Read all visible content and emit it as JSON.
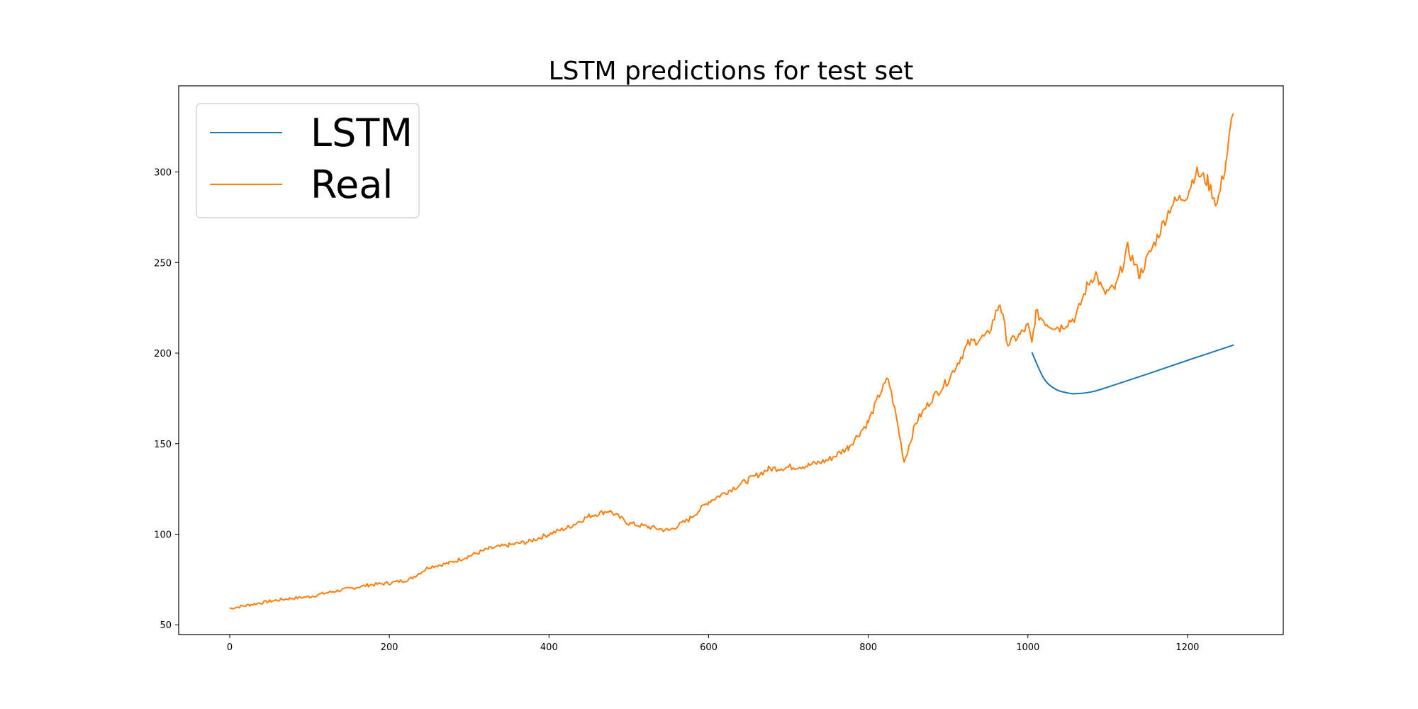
{
  "chart_data": {
    "type": "line",
    "title": "LSTM predictions for test set",
    "xlabel": "",
    "ylabel": "",
    "xlim": [
      -64,
      1320
    ],
    "ylim": [
      44.6,
      347.6
    ],
    "x_ticks": [
      0,
      200,
      400,
      600,
      800,
      1000,
      1200
    ],
    "y_ticks": [
      50,
      100,
      150,
      200,
      250,
      300
    ],
    "grid": false,
    "legend_position": "top-left",
    "series": [
      {
        "name": "LSTM",
        "color": "#1f77b4",
        "points": [
          [
            1005,
            200.5
          ],
          [
            1020,
            186
          ],
          [
            1035,
            180
          ],
          [
            1050,
            178
          ],
          [
            1060,
            177.6
          ],
          [
            1080,
            178.6
          ],
          [
            1100,
            181.2
          ],
          [
            1150,
            188.5
          ],
          [
            1200,
            196
          ],
          [
            1258,
            204.5
          ]
        ]
      },
      {
        "name": "Real",
        "color": "#ff7f0e",
        "anchors": [
          [
            0,
            59
          ],
          [
            25,
            61
          ],
          [
            50,
            63
          ],
          [
            75,
            64.5
          ],
          [
            100,
            65.5
          ],
          [
            125,
            68
          ],
          [
            150,
            70
          ],
          [
            175,
            72
          ],
          [
            200,
            73
          ],
          [
            225,
            75
          ],
          [
            250,
            82
          ],
          [
            275,
            84
          ],
          [
            300,
            88
          ],
          [
            325,
            92
          ],
          [
            350,
            94
          ],
          [
            375,
            96
          ],
          [
            400,
            100
          ],
          [
            425,
            104
          ],
          [
            450,
            110
          ],
          [
            475,
            113
          ],
          [
            500,
            106
          ],
          [
            525,
            104
          ],
          [
            550,
            102
          ],
          [
            575,
            108
          ],
          [
            600,
            118
          ],
          [
            625,
            124
          ],
          [
            650,
            130
          ],
          [
            675,
            136
          ],
          [
            700,
            137
          ],
          [
            725,
            138
          ],
          [
            750,
            141
          ],
          [
            775,
            148
          ],
          [
            800,
            162
          ],
          [
            815,
            178
          ],
          [
            825,
            186
          ],
          [
            835,
            165
          ],
          [
            845,
            140
          ],
          [
            860,
            162
          ],
          [
            880,
            175
          ],
          [
            900,
            185
          ],
          [
            925,
            205
          ],
          [
            950,
            210
          ],
          [
            965,
            228
          ],
          [
            975,
            205
          ],
          [
            990,
            210
          ],
          [
            1000,
            215
          ],
          [
            1005,
            205
          ],
          [
            1010,
            222
          ],
          [
            1025,
            216
          ],
          [
            1040,
            214
          ],
          [
            1060,
            220
          ],
          [
            1075,
            238
          ],
          [
            1085,
            244
          ],
          [
            1095,
            233
          ],
          [
            1110,
            236
          ],
          [
            1125,
            258
          ],
          [
            1140,
            243
          ],
          [
            1160,
            262
          ],
          [
            1180,
            282
          ],
          [
            1200,
            288
          ],
          [
            1210,
            300
          ],
          [
            1225,
            295
          ],
          [
            1237,
            282
          ],
          [
            1248,
            305
          ],
          [
            1255,
            327
          ],
          [
            1258,
            332
          ]
        ]
      }
    ]
  }
}
